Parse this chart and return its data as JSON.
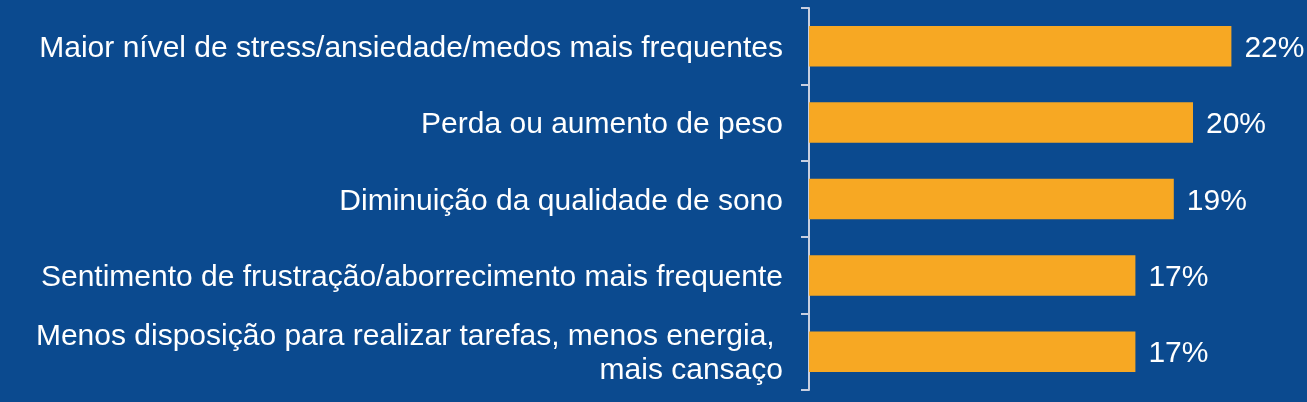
{
  "chart_data": {
    "type": "bar",
    "orientation": "horizontal",
    "categories": [
      "Maior nível de stress/ansiedade/medos mais frequentes",
      "Perda ou aumento de peso",
      "Diminuição da qualidade de sono",
      "Sentimento de frustração/aborrecimento mais frequente",
      "Menos disposição para realizar tarefas, menos energia, mais cansaço"
    ],
    "values": [
      22,
      20,
      19,
      17,
      17
    ],
    "color": "#f7a823",
    "value_labels": [
      "22%",
      "20%",
      "19%",
      "17%",
      "17%"
    ]
  }
}
